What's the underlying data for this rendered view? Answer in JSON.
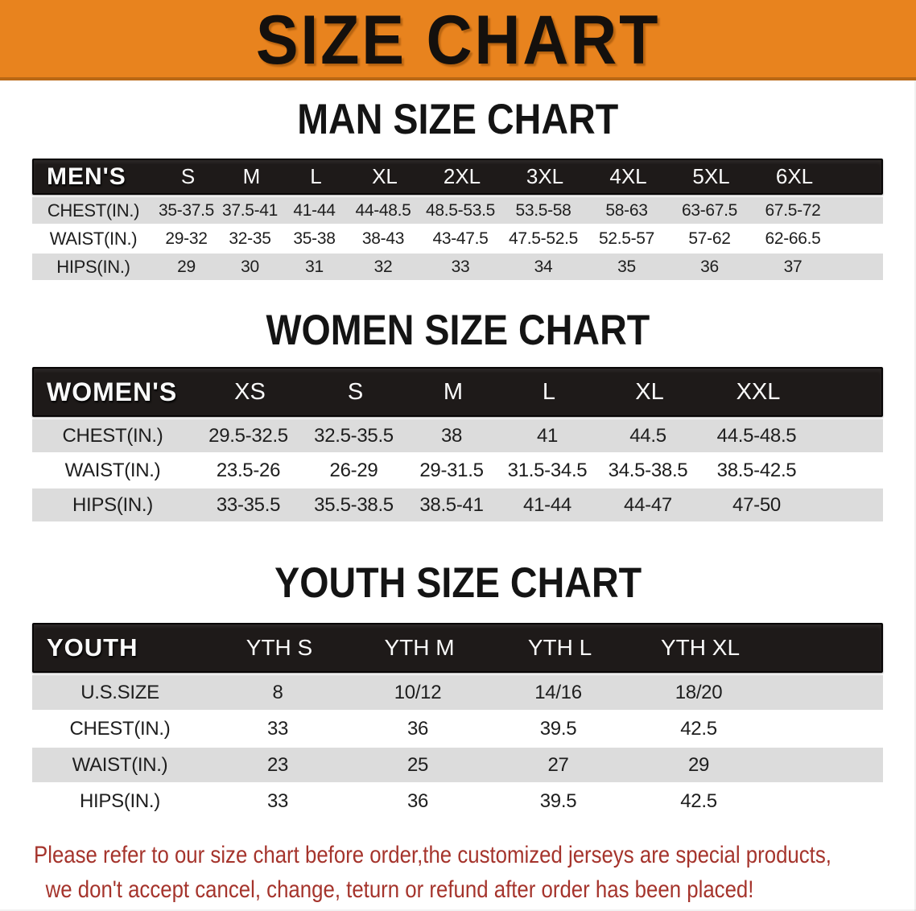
{
  "banner": {
    "title": "SIZE CHART"
  },
  "colors": {
    "banner_orange": "#E8831E",
    "header_black": "#1E1A19",
    "row_gray": "#DCDCDC",
    "disclaimer_red": "#A5342C"
  },
  "men": {
    "section_title": "MAN SIZE CHART",
    "corner_label": "MEN'S",
    "sizes": [
      "S",
      "M",
      "L",
      "XL",
      "2XL",
      "3XL",
      "4XL",
      "5XL",
      "6XL"
    ],
    "rows": [
      {
        "label": "CHEST(IN.)",
        "values": [
          "35-37.5",
          "37.5-41",
          "41-44",
          "44-48.5",
          "48.5-53.5",
          "53.5-58",
          "58-63",
          "63-67.5",
          "67.5-72"
        ]
      },
      {
        "label": "WAIST(IN.)",
        "values": [
          "29-32",
          "32-35",
          "35-38",
          "38-43",
          "43-47.5",
          "47.5-52.5",
          "52.5-57",
          "57-62",
          "62-66.5"
        ]
      },
      {
        "label": "HIPS(IN.)",
        "values": [
          "29",
          "30",
          "31",
          "32",
          "33",
          "34",
          "35",
          "36",
          "37"
        ]
      }
    ]
  },
  "women": {
    "section_title": "WOMEN SIZE CHART",
    "corner_label": "WOMEN'S",
    "sizes": [
      "XS",
      "S",
      "M",
      "L",
      "XL",
      "XXL"
    ],
    "rows": [
      {
        "label": "CHEST(IN.)",
        "values": [
          "29.5-32.5",
          "32.5-35.5",
          "38",
          "41",
          "44.5",
          "44.5-48.5"
        ]
      },
      {
        "label": "WAIST(IN.)",
        "values": [
          "23.5-26",
          "26-29",
          "29-31.5",
          "31.5-34.5",
          "34.5-38.5",
          "38.5-42.5"
        ]
      },
      {
        "label": "HIPS(IN.)",
        "values": [
          "33-35.5",
          "35.5-38.5",
          "38.5-41",
          "41-44",
          "44-47",
          "47-50"
        ]
      }
    ]
  },
  "youth": {
    "section_title": "YOUTH SIZE CHART",
    "corner_label": "YOUTH",
    "sizes": [
      "YTH S",
      "YTH M",
      "YTH L",
      "YTH XL"
    ],
    "rows": [
      {
        "label": "U.S.SIZE",
        "values": [
          "8",
          "10/12",
          "14/16",
          "18/20"
        ]
      },
      {
        "label": "CHEST(IN.)",
        "values": [
          "33",
          "36",
          "39.5",
          "42.5"
        ]
      },
      {
        "label": "WAIST(IN.)",
        "values": [
          "23",
          "25",
          "27",
          "29"
        ]
      },
      {
        "label": "HIPS(IN.)",
        "values": [
          "33",
          "36",
          "39.5",
          "42.5"
        ]
      }
    ]
  },
  "disclaimer": {
    "line1": "Please refer to our size chart before order,the customized jerseys are special products,",
    "line2": "we don't accept cancel, change, teturn or refund after order has been placed!"
  }
}
